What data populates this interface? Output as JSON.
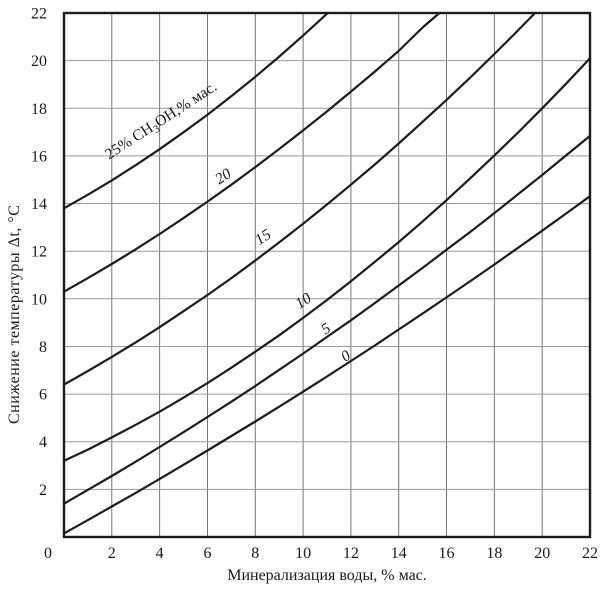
{
  "figure": {
    "bg_color": "#fefefe",
    "ink_color": "#1c1c1c",
    "grid_color_h": "#9a9a9a",
    "grid_color_v": "#767676"
  },
  "chart_data": {
    "type": "line",
    "title": "",
    "xlabel": "Минерализация воды, % мас.",
    "ylabel": "Снижение температуры  Δt, °С",
    "xlim": [
      0,
      22
    ],
    "ylim": [
      0,
      22
    ],
    "xticks": [
      0,
      2,
      4,
      6,
      8,
      10,
      12,
      14,
      16,
      18,
      20,
      22
    ],
    "yticks": [
      2,
      4,
      6,
      8,
      10,
      12,
      14,
      16,
      18,
      20,
      22
    ],
    "grid": true,
    "grid_step": 2,
    "legend_position": "labels-on-curves",
    "series": [
      {
        "name": "25",
        "label": {
          "parts": [
            {
              "t": "25% CH"
            },
            {
              "t": "3",
              "sub": true
            },
            {
              "t": "OH,% мас."
            }
          ],
          "x": 4.05,
          "y": 17.5,
          "rot": -33,
          "italic": false
        },
        "points": [
          [
            0,
            13.8
          ],
          [
            1,
            14.37
          ],
          [
            2,
            14.97
          ],
          [
            3,
            15.61
          ],
          [
            4,
            16.28
          ],
          [
            5,
            16.99
          ],
          [
            6,
            17.73
          ],
          [
            7,
            18.51
          ],
          [
            8,
            19.32
          ],
          [
            9,
            20.17
          ],
          [
            10,
            21.05
          ],
          [
            11,
            21.97
          ],
          [
            11.05,
            22
          ]
        ]
      },
      {
        "name": "20",
        "label": {
          "parts": [
            {
              "t": "20"
            }
          ],
          "x": 6.65,
          "y": 15.15,
          "rot": -33,
          "italic": true
        },
        "points": [
          [
            0,
            10.3
          ],
          [
            1,
            10.87
          ],
          [
            2,
            11.46
          ],
          [
            3,
            12.08
          ],
          [
            4,
            12.72
          ],
          [
            5,
            13.39
          ],
          [
            6,
            14.08
          ],
          [
            7,
            14.79
          ],
          [
            8,
            15.53
          ],
          [
            9,
            16.29
          ],
          [
            10,
            17.07
          ],
          [
            11,
            17.87
          ],
          [
            12,
            18.7
          ],
          [
            13,
            19.54
          ],
          [
            14,
            20.41
          ],
          [
            15,
            21.39
          ],
          [
            15.7,
            22
          ]
        ]
      },
      {
        "name": "15",
        "label": {
          "parts": [
            {
              "t": "15"
            }
          ],
          "x": 8.32,
          "y": 12.6,
          "rot": -33,
          "italic": true
        },
        "points": [
          [
            0,
            6.4
          ],
          [
            1,
            6.97
          ],
          [
            2,
            7.56
          ],
          [
            3,
            8.17
          ],
          [
            4,
            8.81
          ],
          [
            5,
            9.48
          ],
          [
            6,
            10.16
          ],
          [
            7,
            10.87
          ],
          [
            8,
            11.61
          ],
          [
            9,
            12.37
          ],
          [
            10,
            13.15
          ],
          [
            11,
            13.96
          ],
          [
            12,
            14.79
          ],
          [
            13,
            15.64
          ],
          [
            14,
            16.52
          ],
          [
            15,
            17.43
          ],
          [
            16,
            18.35
          ],
          [
            17,
            19.3
          ],
          [
            18,
            20.28
          ],
          [
            19,
            21.28
          ],
          [
            19.7,
            22
          ]
        ]
      },
      {
        "name": "10",
        "label": {
          "parts": [
            {
              "t": "10"
            }
          ],
          "x": 10.0,
          "y": 9.92,
          "rot": -33,
          "italic": true
        },
        "points": [
          [
            0,
            3.2
          ],
          [
            1,
            3.67
          ],
          [
            2,
            4.18
          ],
          [
            3,
            4.71
          ],
          [
            4,
            5.26
          ],
          [
            5,
            5.85
          ],
          [
            6,
            6.46
          ],
          [
            7,
            7.11
          ],
          [
            8,
            7.78
          ],
          [
            9,
            8.47
          ],
          [
            10,
            9.2
          ],
          [
            11,
            9.95
          ],
          [
            12,
            10.74
          ],
          [
            13,
            11.55
          ],
          [
            14,
            12.38
          ],
          [
            15,
            13.25
          ],
          [
            16,
            14.14
          ],
          [
            17,
            15.07
          ],
          [
            18,
            16.02
          ],
          [
            19,
            16.99
          ],
          [
            20,
            18.0
          ],
          [
            21,
            19.03
          ],
          [
            22,
            20.1
          ]
        ]
      },
      {
        "name": "5",
        "label": {
          "parts": [
            {
              "t": "5"
            }
          ],
          "x": 10.95,
          "y": 8.75,
          "rot": -33,
          "italic": true
        },
        "points": [
          [
            0,
            1.4
          ],
          [
            1,
            1.98
          ],
          [
            2,
            2.56
          ],
          [
            3,
            3.16
          ],
          [
            4,
            3.78
          ],
          [
            5,
            4.4
          ],
          [
            6,
            5.04
          ],
          [
            7,
            5.68
          ],
          [
            8,
            6.34
          ],
          [
            9,
            7.02
          ],
          [
            10,
            7.7
          ],
          [
            11,
            8.4
          ],
          [
            12,
            9.1
          ],
          [
            13,
            9.82
          ],
          [
            14,
            10.56
          ],
          [
            15,
            11.3
          ],
          [
            16,
            12.06
          ],
          [
            17,
            12.82
          ],
          [
            18,
            13.6
          ],
          [
            19,
            14.4
          ],
          [
            20,
            15.2
          ],
          [
            21,
            16.02
          ],
          [
            22,
            16.84
          ]
        ]
      },
      {
        "name": "0",
        "label": {
          "parts": [
            {
              "t": "0"
            }
          ],
          "x": 11.78,
          "y": 7.6,
          "rot": -33,
          "italic": true
        },
        "points": [
          [
            0,
            0.15
          ],
          [
            1,
            0.71
          ],
          [
            2,
            1.28
          ],
          [
            3,
            1.85
          ],
          [
            4,
            2.44
          ],
          [
            5,
            3.03
          ],
          [
            6,
            3.63
          ],
          [
            7,
            4.24
          ],
          [
            8,
            4.85
          ],
          [
            9,
            5.47
          ],
          [
            10,
            6.1
          ],
          [
            11,
            6.74
          ],
          [
            12,
            7.39
          ],
          [
            13,
            8.04
          ],
          [
            14,
            8.71
          ],
          [
            15,
            9.38
          ],
          [
            16,
            10.06
          ],
          [
            17,
            10.75
          ],
          [
            18,
            11.44
          ],
          [
            19,
            12.15
          ],
          [
            20,
            12.86
          ],
          [
            21,
            13.58
          ],
          [
            22,
            14.31
          ]
        ]
      }
    ]
  }
}
